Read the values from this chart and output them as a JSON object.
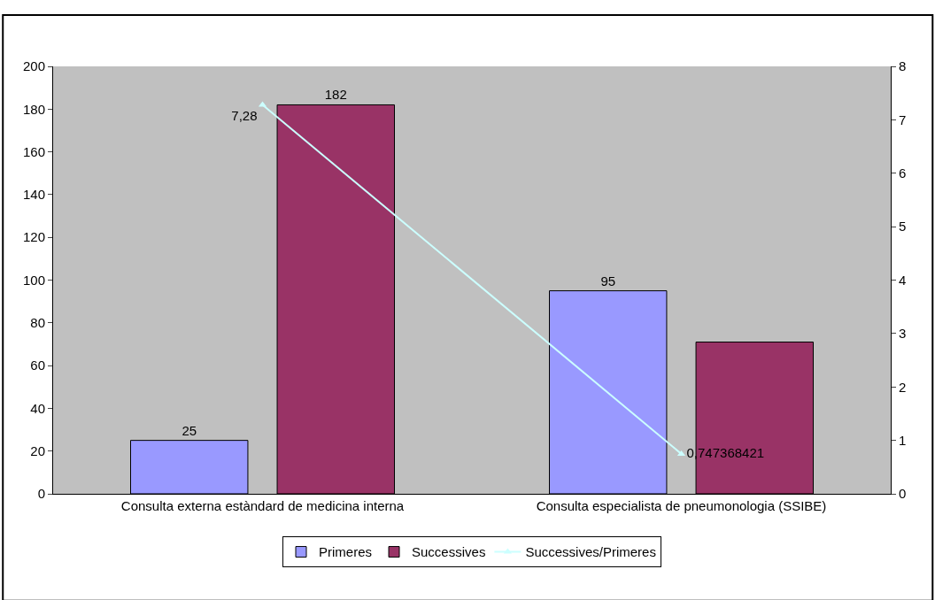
{
  "chart_data": {
    "type": "bar",
    "categories": [
      "Consulta externa estàndard de medicina interna",
      "Consulta especialista de pneumonologia (SSIBE)"
    ],
    "series": [
      {
        "name": "Primeres",
        "color": "#9999ff",
        "values": [
          25,
          95
        ],
        "value_labels": [
          "25",
          "95"
        ]
      },
      {
        "name": "Successives",
        "color": "#993366",
        "values": [
          182,
          71
        ],
        "value_labels": [
          "182",
          null
        ]
      },
      {
        "name": "Successives/Primeres",
        "type": "line",
        "axis": "y2",
        "color": "#ccffff",
        "marker": "triangle",
        "values": [
          7.28,
          0.747368421
        ],
        "value_labels": [
          "7,28",
          "0,747368421"
        ]
      }
    ],
    "ylim": [
      0,
      200
    ],
    "yticks": [
      0,
      20,
      40,
      60,
      80,
      100,
      120,
      140,
      160,
      180,
      200
    ],
    "y2lim": [
      0,
      8
    ],
    "y2ticks": [
      0,
      1,
      2,
      3,
      4,
      5,
      6,
      7,
      8
    ],
    "grid": false,
    "legend": "bottom"
  }
}
